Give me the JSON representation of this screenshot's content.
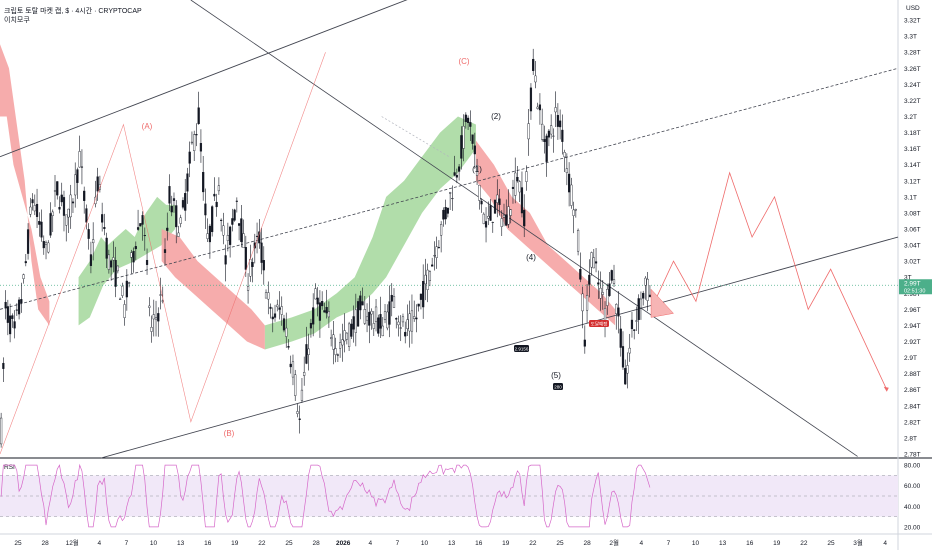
{
  "header": {
    "title": "크립토 토탈 마켓 캡, $ · 4시간 · CRYPTOCAP",
    "subtitle": "이치모쿠"
  },
  "rsi_title": "RSI",
  "price_badge": {
    "value": "2.99T",
    "countdown": "02:51:30"
  },
  "labels": {
    "wave_A": "(A)",
    "wave_B": "(B)",
    "wave_C": "(C)",
    "w1": "(1)",
    "w2": "(2)",
    "w4": "(4)",
    "w5": "(5)",
    "tag_low1": "2.9156",
    "tag_low2": "280",
    "tag_box": "도달예정"
  },
  "colors": {
    "cloud_bear": "#f5a3a3",
    "cloud_bull": "#a8d9a1",
    "rsi_line": "#d668c9",
    "rsi_band": "#f1e8f8",
    "wave_line": "#ef6b6b",
    "candle": "#131722",
    "price_line": "#4caf8a"
  },
  "chart_data": {
    "type": "candlestick",
    "title": "크립토 토탈 마켓 캡, $ · 4시간 · CRYPTOCAP",
    "y_unit": "USD",
    "yticks": [
      "3.32T",
      "3.3T",
      "3.28T",
      "3.26T",
      "3.24T",
      "3.22T",
      "3.2T",
      "3.18T",
      "3.16T",
      "3.14T",
      "3.12T",
      "3.1T",
      "3.08T",
      "3.06T",
      "3.04T",
      "3.02T",
      "3T",
      "2.98T",
      "2.96T",
      "2.94T",
      "2.92T",
      "2.9T",
      "2.88T",
      "2.86T",
      "2.84T",
      "2.82T",
      "2.8T",
      "2.78T"
    ],
    "ytick_values": [
      3.32,
      3.3,
      3.28,
      3.26,
      3.24,
      3.22,
      3.2,
      3.18,
      3.16,
      3.14,
      3.12,
      3.1,
      3.08,
      3.06,
      3.04,
      3.02,
      3.0,
      2.98,
      2.96,
      2.94,
      2.92,
      2.9,
      2.88,
      2.86,
      2.84,
      2.82,
      2.8,
      2.78
    ],
    "xticks": [
      "25",
      "28",
      "12월",
      "4",
      "7",
      "10",
      "13",
      "16",
      "19",
      "22",
      "25",
      "28",
      "2026",
      "4",
      "7",
      "10",
      "13",
      "16",
      "19",
      "22",
      "25",
      "28",
      "2월",
      "4",
      "7",
      "10",
      "13",
      "16",
      "19",
      "22",
      "25",
      "3월",
      "4"
    ],
    "ylim": [
      2.775,
      3.345
    ],
    "price_path": [
      [
        0,
        2.81
      ],
      [
        2,
        2.96
      ],
      [
        6,
        2.93
      ],
      [
        10,
        2.99
      ],
      [
        14,
        3.1
      ],
      [
        20,
        3.03
      ],
      [
        25,
        3.11
      ],
      [
        30,
        3.07
      ],
      [
        35,
        3.15
      ],
      [
        40,
        3.02
      ],
      [
        43,
        3.12
      ],
      [
        48,
        3.02
      ],
      [
        52,
        3.0
      ],
      [
        55,
        2.96
      ],
      [
        60,
        3.05
      ],
      [
        63,
        3.08
      ],
      [
        67,
        2.93
      ],
      [
        72,
        2.98
      ],
      [
        75,
        3.1
      ],
      [
        80,
        3.06
      ],
      [
        85,
        3.16
      ],
      [
        88,
        3.2
      ],
      [
        92,
        3.04
      ],
      [
        97,
        3.12
      ],
      [
        100,
        3.02
      ],
      [
        105,
        3.1
      ],
      [
        110,
        3.0
      ],
      [
        115,
        3.05
      ],
      [
        120,
        2.95
      ],
      [
        125,
        2.96
      ],
      [
        130,
        2.89
      ],
      [
        133,
        2.82
      ],
      [
        136,
        2.9
      ],
      [
        140,
        2.97
      ],
      [
        145,
        2.95
      ],
      [
        150,
        2.91
      ],
      [
        155,
        2.93
      ],
      [
        160,
        2.96
      ],
      [
        165,
        2.95
      ],
      [
        170,
        2.94
      ],
      [
        175,
        2.97
      ],
      [
        180,
        2.93
      ],
      [
        185,
        2.95
      ],
      [
        190,
        3.0
      ],
      [
        195,
        3.05
      ],
      [
        200,
        3.1
      ],
      [
        205,
        3.16
      ],
      [
        208,
        3.2
      ],
      [
        212,
        3.13
      ],
      [
        216,
        3.06
      ],
      [
        220,
        3.09
      ],
      [
        225,
        3.07
      ],
      [
        230,
        3.13
      ],
      [
        233,
        3.08
      ],
      [
        237,
        3.27
      ],
      [
        240,
        3.2
      ],
      [
        243,
        3.16
      ],
      [
        247,
        3.2
      ],
      [
        250,
        3.18
      ],
      [
        253,
        3.12
      ],
      [
        256,
        3.08
      ],
      [
        260,
        2.93
      ],
      [
        263,
        3.03
      ],
      [
        266,
        2.99
      ],
      [
        269,
        2.96
      ],
      [
        272,
        3.01
      ],
      [
        275,
        2.95
      ],
      [
        278,
        2.87
      ],
      [
        281,
        2.93
      ],
      [
        284,
        2.96
      ],
      [
        287,
        2.99
      ],
      [
        290,
        2.97
      ]
    ],
    "projection_path": [
      [
        290,
        2.96
      ],
      [
        300,
        3.02
      ],
      [
        310,
        2.97
      ],
      [
        325,
        3.13
      ],
      [
        335,
        3.05
      ],
      [
        345,
        3.1
      ],
      [
        360,
        2.96
      ],
      [
        370,
        3.01
      ],
      [
        395,
        2.86
      ]
    ],
    "wave_path": [
      [
        0,
        2.78
      ],
      [
        55,
        3.19
      ],
      [
        85,
        2.82
      ],
      [
        145,
        3.28
      ]
    ],
    "wave_labels": [
      {
        "label": "(A)",
        "x": 55,
        "y": 3.19
      },
      {
        "label": "(B)",
        "x": 85,
        "y": 2.82
      },
      {
        "label": "(C)",
        "x": 145,
        "y": 3.28
      }
    ],
    "x_count": 400,
    "rsi": {
      "ylim": [
        15,
        85
      ],
      "yticks": [
        "80.00",
        "60.00",
        "40.00",
        "20.00"
      ],
      "ytick_values": [
        80,
        60,
        40,
        20
      ],
      "band": [
        30,
        70
      ],
      "mid": 50
    }
  }
}
